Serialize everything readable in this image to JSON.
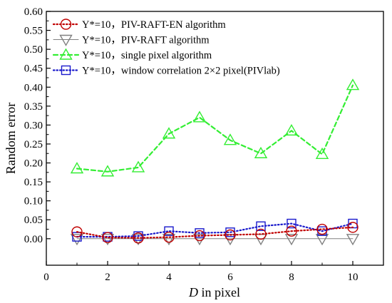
{
  "chart_data": {
    "type": "line",
    "xlabel_italic": "D",
    "xlabel_rest": " in pixel",
    "ylabel": "Random error",
    "xlim": [
      0,
      11
    ],
    "ylim": [
      -0.07,
      0.6
    ],
    "x_ticks": [
      0,
      2,
      4,
      6,
      8,
      10
    ],
    "y_ticks": [
      "0.00",
      "0.05",
      "0.10",
      "0.15",
      "0.20",
      "0.25",
      "0.30",
      "0.35",
      "0.40",
      "0.45",
      "0.50",
      "0.55",
      "0.60"
    ],
    "grid": false,
    "legend_position": "top-left",
    "x": [
      1,
      2,
      3,
      4,
      5,
      6,
      7,
      8,
      9,
      10
    ],
    "series": [
      {
        "name": "Y*=10，PIV-RAFT-EN algorithm",
        "marker": "circle",
        "color": "#c00000",
        "line_style": "dotted",
        "values": [
          0.018,
          0.003,
          0.002,
          0.004,
          0.008,
          0.01,
          0.012,
          0.02,
          0.025,
          0.03
        ]
      },
      {
        "name": "Y*=10，PIV-RAFT algorithm",
        "marker": "triangle-down",
        "color": "#808080",
        "line_style": "solid",
        "values": [
          0.0,
          0.0,
          0.0,
          0.0,
          0.0,
          0.0,
          0.0,
          0.0,
          0.0,
          0.0
        ]
      },
      {
        "name": "Y*=10，single pixel algorithm",
        "marker": "triangle-up",
        "color": "#33ee33",
        "line_style": "dashed",
        "values": [
          0.185,
          0.177,
          0.188,
          0.277,
          0.32,
          0.26,
          0.225,
          0.285,
          0.223,
          0.405
        ]
      },
      {
        "name": "Y*=10，window correlation 2×2 pixel(PIVlab)",
        "marker": "square",
        "color": "#1a1acc",
        "line_style": "dotted",
        "values": [
          0.005,
          0.005,
          0.007,
          0.02,
          0.015,
          0.017,
          0.033,
          0.04,
          0.02,
          0.04
        ]
      }
    ]
  }
}
